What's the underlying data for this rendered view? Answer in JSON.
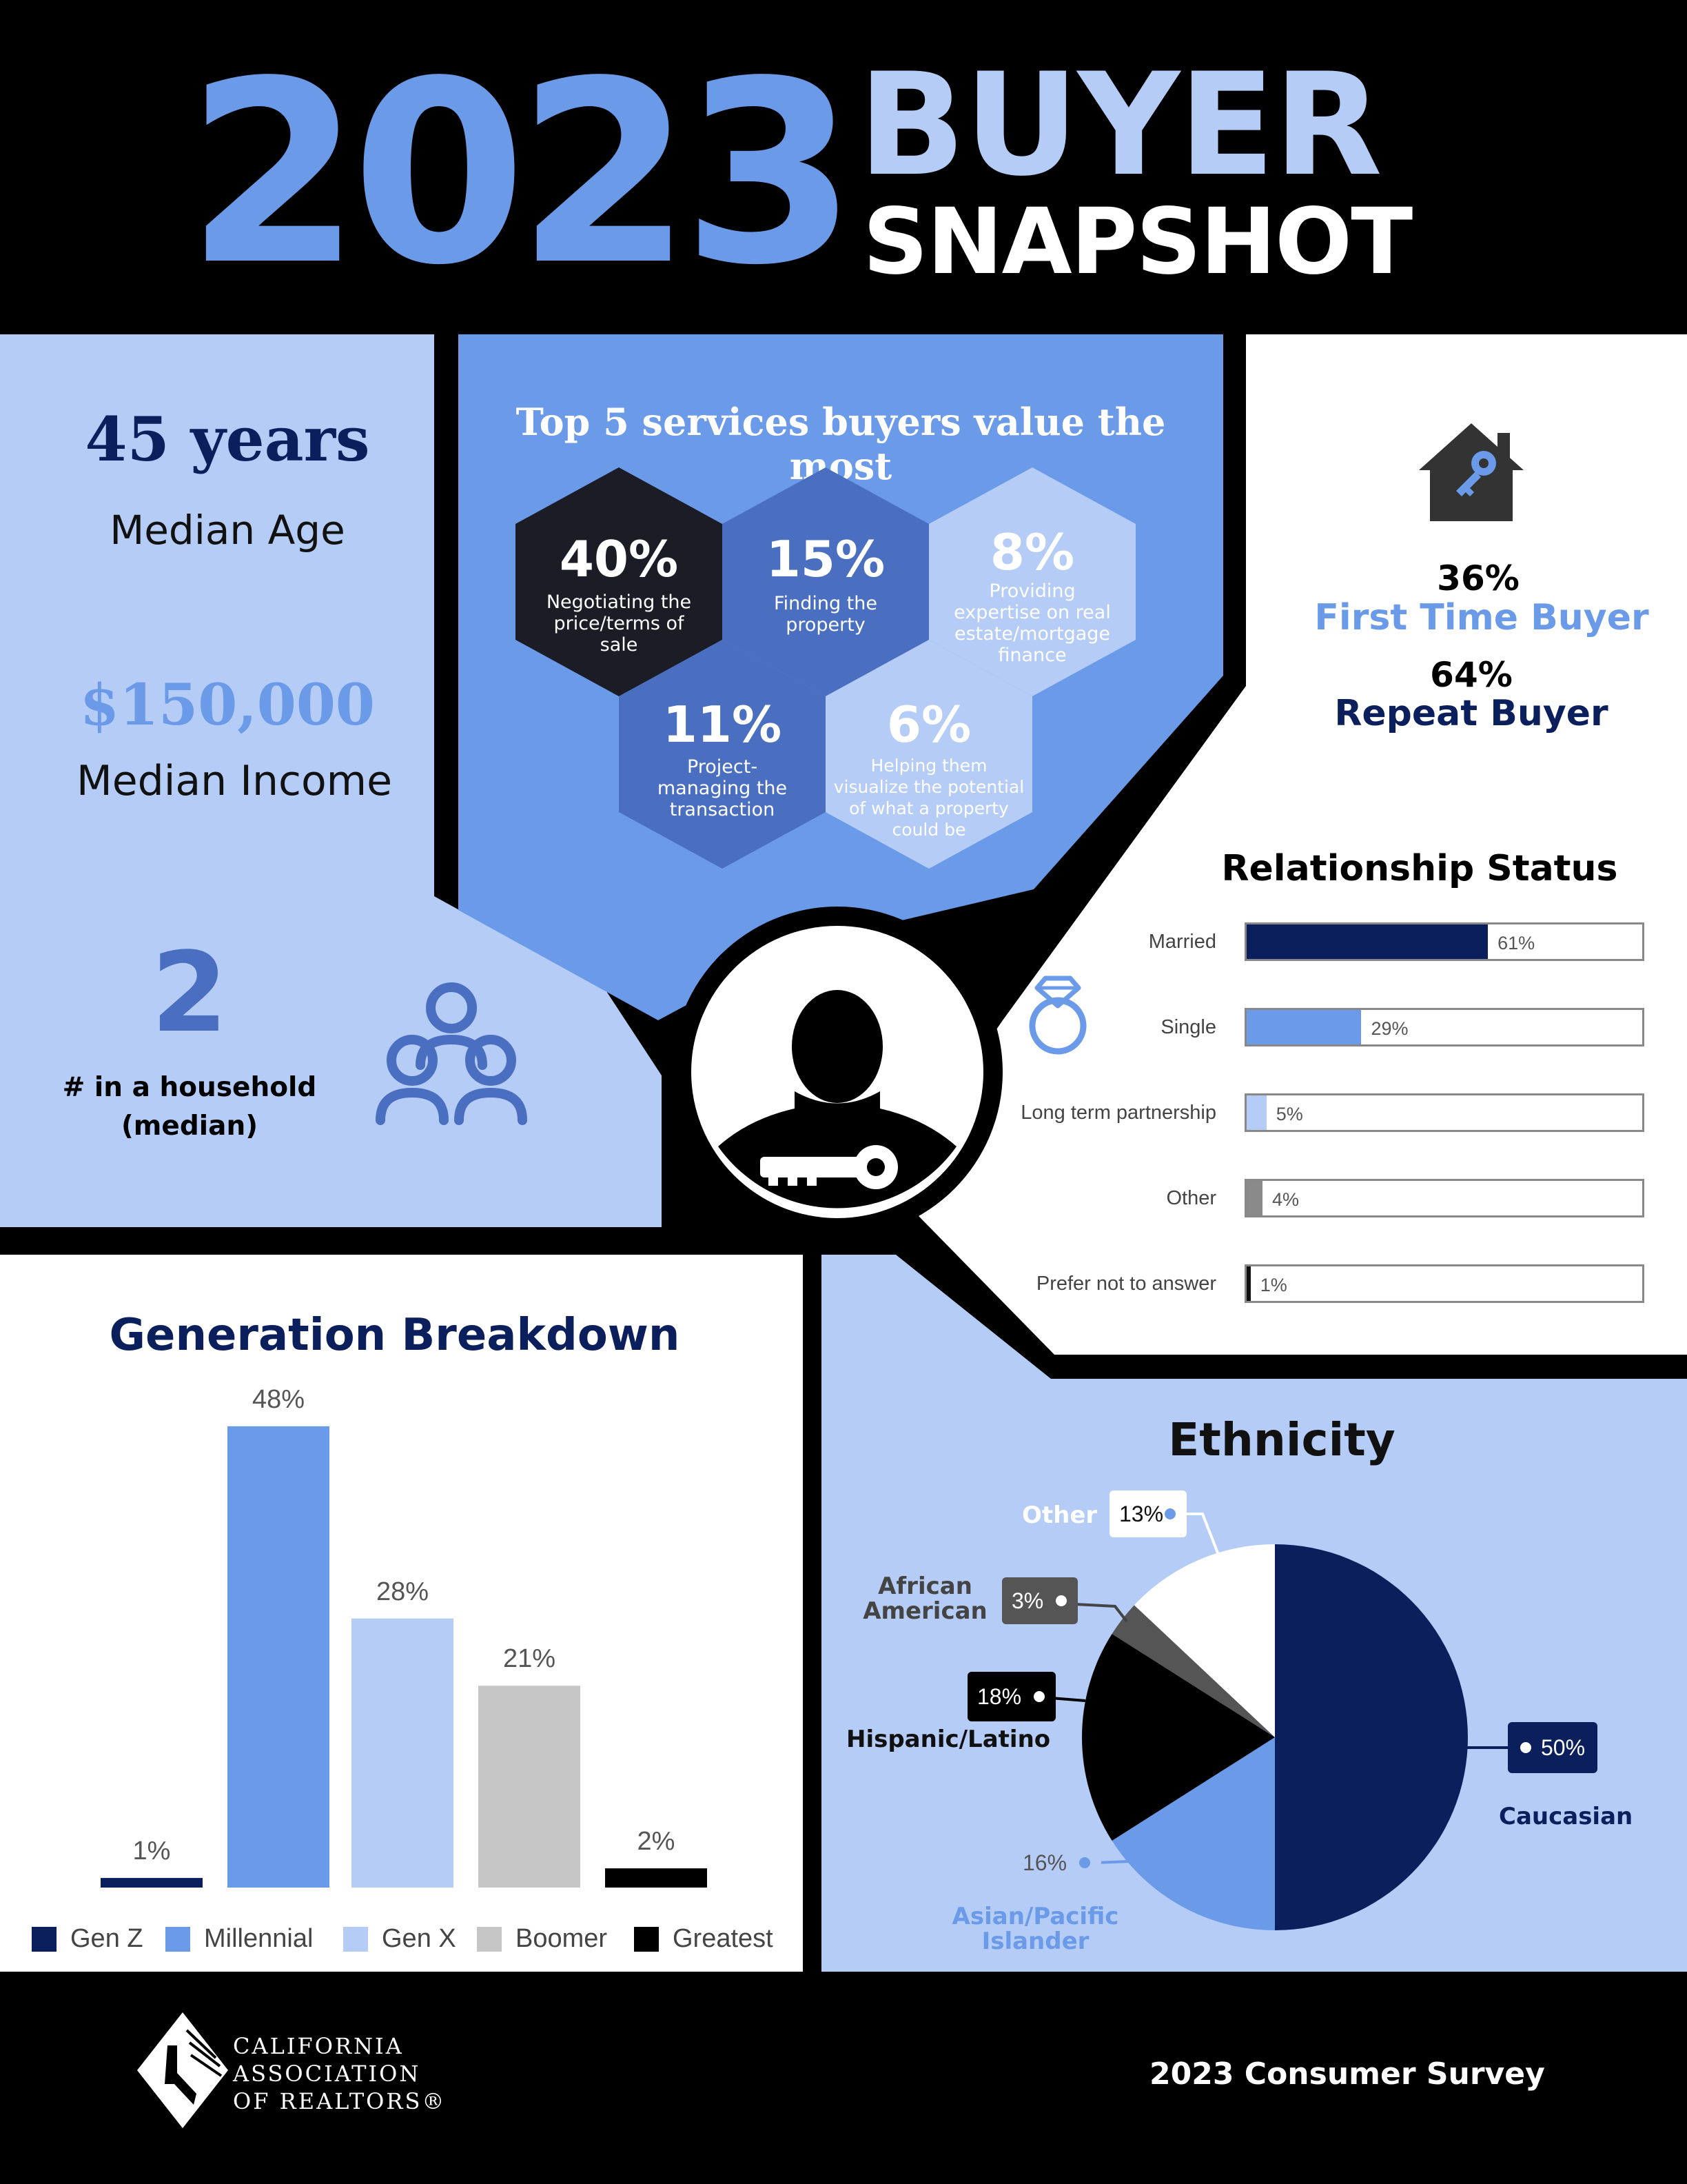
{
  "header": {
    "year": "2023",
    "line1": "BUYER",
    "line2": "SNAPSHOT"
  },
  "stats": {
    "median_age_value": "45 years",
    "median_age_label": "Median Age",
    "median_income_value": "$150,000",
    "median_income_label": "Median Income",
    "household_value": "2",
    "household_label_line1": "# in a household",
    "household_label_line2": "(median)"
  },
  "services": {
    "title": "Top 5 services buyers value the most",
    "items": [
      {
        "pct": "40%",
        "lines": [
          "Negotiating the",
          "price/terms of",
          "sale"
        ]
      },
      {
        "pct": "15%",
        "lines": [
          "Finding the",
          "property"
        ]
      },
      {
        "pct": "8%",
        "lines": [
          "Providing",
          "expertise on real",
          "estate/mortgage",
          "finance"
        ]
      },
      {
        "pct": "11%",
        "lines": [
          "Project-",
          "managing the",
          "transaction"
        ]
      },
      {
        "pct": "6%",
        "lines": [
          "Helping them",
          "visualize the potential",
          "of what a property",
          "could be"
        ]
      }
    ]
  },
  "buyer_type": {
    "first_pct": "36%",
    "first_label": "First Time Buyer",
    "repeat_pct": "64%",
    "repeat_label": "Repeat Buyer"
  },
  "relationship": {
    "title": "Relationship Status",
    "items": [
      {
        "label": "Married",
        "value": 61,
        "text": "61%",
        "color": "#0a1f5c"
      },
      {
        "label": "Single",
        "value": 29,
        "text": "29%",
        "color": "#6b9ae8"
      },
      {
        "label": "Long term partnership",
        "value": 5,
        "text": "5%",
        "color": "#b4ccf6"
      },
      {
        "label": "Other",
        "value": 4,
        "text": "4%",
        "color": "#8a8a8a"
      },
      {
        "label": "Prefer not to answer",
        "value": 1,
        "text": "1%",
        "color": "#111111"
      }
    ]
  },
  "chart_data": [
    {
      "type": "bar",
      "title": "Generation Breakdown",
      "categories": [
        "Gen Z",
        "Millennial",
        "Gen X",
        "Boomer",
        "Greatest"
      ],
      "values": [
        1,
        48,
        28,
        21,
        2
      ],
      "value_labels": [
        "1%",
        "48%",
        "28%",
        "21%",
        "2%"
      ],
      "colors": [
        "#0a1f5c",
        "#6b9ae8",
        "#b4ccf6",
        "#c6c6c6",
        "#000000"
      ],
      "legend": "bottom",
      "ylim": [
        0,
        50
      ]
    },
    {
      "type": "pie",
      "title": "Ethnicity",
      "categories": [
        "Caucasian",
        "Asian/Pacific Islander",
        "Hispanic/Latino",
        "African American",
        "Other"
      ],
      "values": [
        50,
        16,
        18,
        3,
        13
      ],
      "value_labels": [
        "50%",
        "16%",
        "18%",
        "3%",
        "13%"
      ],
      "colors": [
        "#0a1f5c",
        "#6b9ae8",
        "#000000",
        "#555555",
        "#ffffff"
      ]
    }
  ],
  "footer": {
    "org_line1": "CALIFORNIA",
    "org_line2": "ASSOCIATION",
    "org_line3": "OF REALTORS®",
    "survey": "2023 Consumer Survey"
  }
}
